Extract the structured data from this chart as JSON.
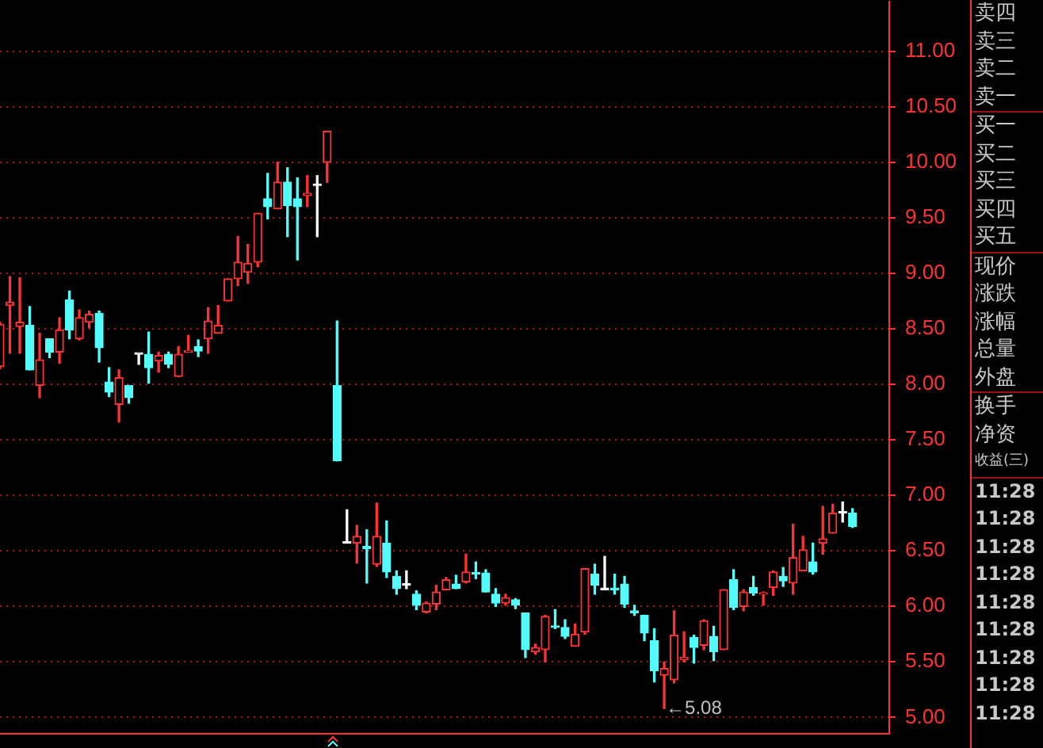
{
  "chart_data": {
    "type": "candlestick",
    "categories": [
      null,
      null,
      null,
      null,
      null,
      null,
      null,
      null,
      null,
      null,
      null,
      null,
      null,
      null,
      null,
      null,
      null,
      null,
      null,
      null,
      null,
      null,
      null,
      null,
      null,
      null,
      null,
      null,
      null,
      null,
      null,
      null,
      null,
      null,
      null,
      null,
      null,
      null,
      null,
      null,
      null,
      null,
      null,
      null,
      null,
      null,
      null,
      null,
      null,
      null,
      null,
      null,
      null,
      null,
      null,
      null,
      null,
      null,
      null,
      null,
      null,
      null,
      null,
      null,
      null,
      null,
      null,
      null,
      null,
      null,
      null,
      null,
      null,
      null,
      null,
      null,
      null,
      null,
      null,
      null,
      null,
      null,
      null,
      null,
      null,
      null,
      null
    ],
    "ohlc": [
      [
        8.16,
        8.56,
        8.14,
        8.54
      ],
      [
        8.71,
        8.97,
        8.28,
        8.74
      ],
      [
        8.52,
        8.96,
        8.28,
        8.56
      ],
      [
        8.53,
        8.7,
        8.13,
        8.13
      ],
      [
        7.99,
        8.46,
        7.88,
        8.22
      ],
      [
        8.41,
        8.41,
        8.24,
        8.29
      ],
      [
        8.29,
        8.6,
        8.19,
        8.49
      ],
      [
        8.76,
        8.84,
        8.41,
        8.49
      ],
      [
        8.41,
        8.67,
        8.4,
        8.6
      ],
      [
        8.56,
        8.66,
        8.51,
        8.63
      ],
      [
        8.64,
        8.66,
        8.2,
        8.33
      ],
      [
        8.02,
        8.15,
        7.89,
        7.93
      ],
      [
        7.82,
        8.13,
        7.66,
        8.06
      ],
      [
        7.99,
        7.99,
        7.83,
        7.88
      ],
      [
        8.27,
        8.27,
        8.18,
        8.27
      ],
      [
        8.27,
        8.47,
        8.01,
        8.15
      ],
      [
        8.21,
        8.29,
        8.11,
        8.26
      ],
      [
        8.27,
        8.29,
        8.15,
        8.18
      ],
      [
        8.07,
        8.34,
        8.07,
        8.27
      ],
      [
        8.29,
        8.44,
        8.29,
        8.3
      ],
      [
        8.34,
        8.4,
        8.25,
        8.3
      ],
      [
        8.41,
        8.69,
        8.28,
        8.57
      ],
      [
        8.46,
        8.71,
        8.46,
        8.53
      ],
      [
        8.75,
        8.95,
        8.75,
        8.95
      ],
      [
        8.95,
        9.33,
        8.89,
        9.1
      ],
      [
        9.01,
        9.26,
        8.91,
        9.09
      ],
      [
        9.1,
        9.54,
        9.06,
        9.54
      ],
      [
        9.67,
        9.9,
        9.49,
        9.6
      ],
      [
        9.58,
        10.0,
        9.58,
        9.82
      ],
      [
        9.82,
        9.95,
        9.33,
        9.61
      ],
      [
        9.67,
        9.86,
        9.12,
        9.6
      ],
      [
        9.7,
        9.88,
        9.6,
        9.72
      ],
      [
        9.79,
        9.88,
        9.33,
        9.79
      ],
      [
        10.0,
        10.28,
        9.82,
        10.28
      ],
      [
        7.99,
        8.57,
        7.31,
        7.31
      ],
      [
        6.57,
        6.87,
        6.57,
        6.57
      ],
      [
        6.57,
        6.73,
        6.39,
        6.63
      ],
      [
        6.54,
        6.69,
        6.21,
        6.52
      ],
      [
        6.38,
        6.93,
        6.36,
        6.63
      ],
      [
        6.57,
        6.77,
        6.26,
        6.31
      ],
      [
        6.27,
        6.32,
        6.11,
        6.16
      ],
      [
        6.19,
        6.32,
        6.16,
        6.19
      ],
      [
        6.11,
        6.14,
        5.97,
        6.01
      ],
      [
        5.95,
        6.04,
        5.94,
        6.03
      ],
      [
        6.02,
        6.19,
        5.97,
        6.13
      ],
      [
        6.15,
        6.26,
        6.15,
        6.24
      ],
      [
        6.2,
        6.28,
        6.16,
        6.16
      ],
      [
        6.22,
        6.47,
        6.21,
        6.31
      ],
      [
        6.3,
        6.4,
        6.25,
        6.29
      ],
      [
        6.3,
        6.33,
        6.13,
        6.13
      ],
      [
        6.11,
        6.16,
        6.0,
        6.03
      ],
      [
        6.03,
        6.11,
        6.01,
        6.08
      ],
      [
        6.06,
        6.07,
        5.98,
        6.01
      ],
      [
        5.94,
        5.94,
        5.54,
        5.61
      ],
      [
        5.59,
        5.66,
        5.57,
        5.63
      ],
      [
        5.61,
        5.92,
        5.5,
        5.91
      ],
      [
        5.82,
        5.97,
        5.8,
        5.81
      ],
      [
        5.81,
        5.88,
        5.71,
        5.73
      ],
      [
        5.64,
        5.84,
        5.64,
        5.75
      ],
      [
        5.77,
        6.34,
        5.75,
        6.34
      ],
      [
        6.29,
        6.38,
        6.11,
        6.19
      ],
      [
        6.15,
        6.45,
        6.15,
        6.15
      ],
      [
        6.16,
        6.29,
        6.11,
        6.15
      ],
      [
        6.2,
        6.27,
        5.99,
        6.02
      ],
      [
        5.96,
        6.01,
        5.92,
        5.94
      ],
      [
        5.92,
        5.92,
        5.69,
        5.76
      ],
      [
        5.69,
        5.8,
        5.32,
        5.42
      ],
      [
        5.38,
        5.5,
        5.08,
        5.44
      ],
      [
        5.34,
        5.96,
        5.31,
        5.74
      ],
      [
        5.52,
        5.77,
        5.5,
        5.54
      ],
      [
        5.72,
        5.74,
        5.49,
        5.63
      ],
      [
        5.65,
        5.88,
        5.61,
        5.87
      ],
      [
        5.73,
        5.82,
        5.51,
        5.59
      ],
      [
        5.61,
        6.15,
        5.61,
        6.15
      ],
      [
        6.24,
        6.33,
        5.97,
        5.99
      ],
      [
        6.0,
        6.15,
        5.96,
        6.13
      ],
      [
        6.17,
        6.27,
        6.1,
        6.12
      ],
      [
        6.11,
        6.13,
        6.01,
        6.12
      ],
      [
        6.17,
        6.32,
        6.1,
        6.31
      ],
      [
        6.27,
        6.35,
        6.18,
        6.23
      ],
      [
        6.21,
        6.74,
        6.11,
        6.44
      ],
      [
        6.32,
        6.63,
        6.32,
        6.51
      ],
      [
        6.4,
        6.57,
        6.29,
        6.31
      ],
      [
        6.57,
        6.9,
        6.47,
        6.61
      ],
      [
        6.66,
        6.92,
        6.66,
        6.84
      ],
      [
        6.84,
        6.94,
        6.76,
        6.84
      ],
      [
        6.84,
        6.88,
        6.71,
        6.72
      ]
    ],
    "colors": [
      "#ff3232",
      "#ff3232",
      "#ff3232",
      "#54fcfc",
      "#ff3232",
      "#54fcfc",
      "#ff3232",
      "#54fcfc",
      "#ff3232",
      "#ff3232",
      "#54fcfc",
      "#54fcfc",
      "#ff3232",
      "#54fcfc",
      "#ffffff",
      "#54fcfc",
      "#ff3232",
      "#54fcfc",
      "#ff3232",
      "#ff3232",
      "#54fcfc",
      "#ff3232",
      "#ff3232",
      "#ff3232",
      "#ff3232",
      "#ff3232",
      "#ff3232",
      "#54fcfc",
      "#ff3232",
      "#54fcfc",
      "#54fcfc",
      "#ff3232",
      "#ffffff",
      "#ff3232",
      "#54fcfc",
      "#ffffff",
      "#ff3232",
      "#54fcfc",
      "#ff3232",
      "#54fcfc",
      "#54fcfc",
      "#ffffff",
      "#54fcfc",
      "#ff3232",
      "#ff3232",
      "#ff3232",
      "#54fcfc",
      "#ff3232",
      "#54fcfc",
      "#54fcfc",
      "#54fcfc",
      "#ff3232",
      "#54fcfc",
      "#54fcfc",
      "#ff3232",
      "#ff3232",
      "#54fcfc",
      "#54fcfc",
      "#ff3232",
      "#ff3232",
      "#54fcfc",
      "#ffffff",
      "#54fcfc",
      "#54fcfc",
      "#54fcfc",
      "#54fcfc",
      "#54fcfc",
      "#ff3232",
      "#ff3232",
      "#ff3232",
      "#54fcfc",
      "#ff3232",
      "#54fcfc",
      "#ff3232",
      "#54fcfc",
      "#ff3232",
      "#54fcfc",
      "#ff3232",
      "#ff3232",
      "#54fcfc",
      "#ff3232",
      "#ff3232",
      "#54fcfc",
      "#ff3232",
      "#ff3232",
      "#ffffff",
      "#54fcfc"
    ],
    "ylim": [
      4.85,
      11.45
    ],
    "yticks": [
      {
        "value": 5,
        "label": "5.00"
      },
      {
        "value": 5.5,
        "label": "5.50"
      },
      {
        "value": 6,
        "label": "6.00"
      },
      {
        "value": 6.5,
        "label": "6.50"
      },
      {
        "value": 7,
        "label": "7.00"
      },
      {
        "value": 7.5,
        "label": "7.50"
      },
      {
        "value": 8,
        "label": "8.00"
      },
      {
        "value": 8.5,
        "label": "8.50"
      },
      {
        "value": 9,
        "label": "9.00"
      },
      {
        "value": 9.5,
        "label": "9.50"
      },
      {
        "value": 10,
        "label": "10.00"
      },
      {
        "value": 10.5,
        "label": "10.50"
      },
      {
        "value": 11,
        "label": "11.00"
      }
    ],
    "grid": "y",
    "tick_labels": "y",
    "annotations": [
      "←5.08",
      "卖四",
      "卖三",
      "卖二",
      "卖一",
      "买一",
      "买二",
      "买三",
      "买四",
      "买五",
      "现价",
      "涨跌",
      "涨幅",
      "总量",
      "外盘",
      "换手",
      "净资",
      "收益(三)",
      "11:28",
      "11:28",
      "11:28",
      "11:28",
      "11:28",
      "11:28",
      "11:28",
      "11:28",
      "11:28"
    ]
  }
}
